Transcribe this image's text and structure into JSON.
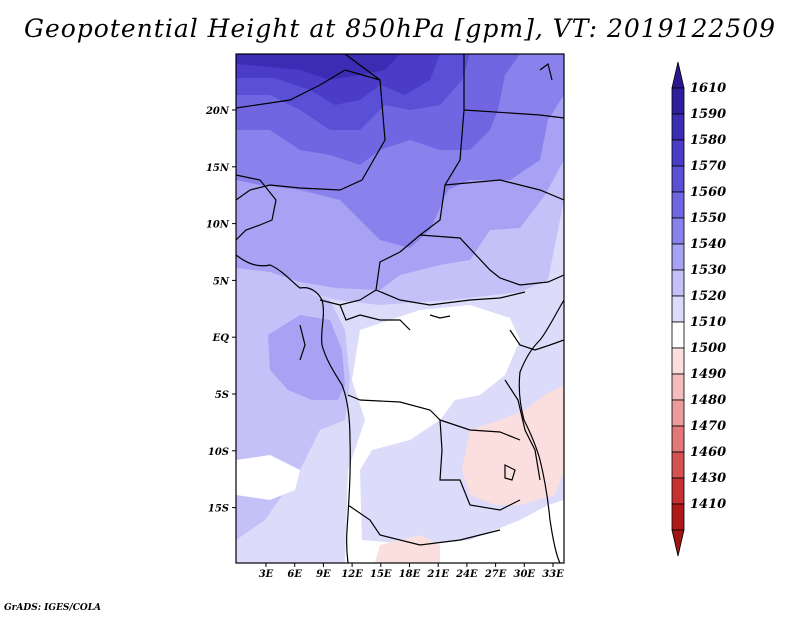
{
  "title": "Geopotential Height at 850hPa [gpm], VT: 2019122509",
  "credit": "GrADS: IGES/COLA",
  "lat_ticks": [
    "20N",
    "15N",
    "10N",
    "5N",
    "EQ",
    "5S",
    "10S",
    "15S"
  ],
  "lon_ticks": [
    "3E",
    "6E",
    "9E",
    "12E",
    "15E",
    "18E",
    "21E",
    "24E",
    "27E",
    "30E",
    "33E"
  ],
  "colorbar": {
    "levels": [
      "1610",
      "1590",
      "1580",
      "1570",
      "1560",
      "1550",
      "1540",
      "1530",
      "1520",
      "1510",
      "1500",
      "1490",
      "1480",
      "1470",
      "1460",
      "1430",
      "1410"
    ],
    "colors": [
      "#2e1f9e",
      "#3a2db4",
      "#4a3cc6",
      "#5a50d6",
      "#7066e2",
      "#8a82ec",
      "#a8a2f4",
      "#c4c0f8",
      "#dcdcfa",
      "#ffffff",
      "#fbdede",
      "#f4bcbc",
      "#ec9c9c",
      "#e27878",
      "#d65252",
      "#c63030",
      "#b01818"
    ],
    "top_arrow_color": "#2a1890",
    "bottom_arrow_color": "#a01414"
  },
  "map": {
    "field": "Geopotential Height at 850hPa",
    "units": "gpm",
    "valid_time": "2019122509",
    "lon_range": [
      0,
      35
    ],
    "lat_range": [
      -20,
      25
    ]
  }
}
